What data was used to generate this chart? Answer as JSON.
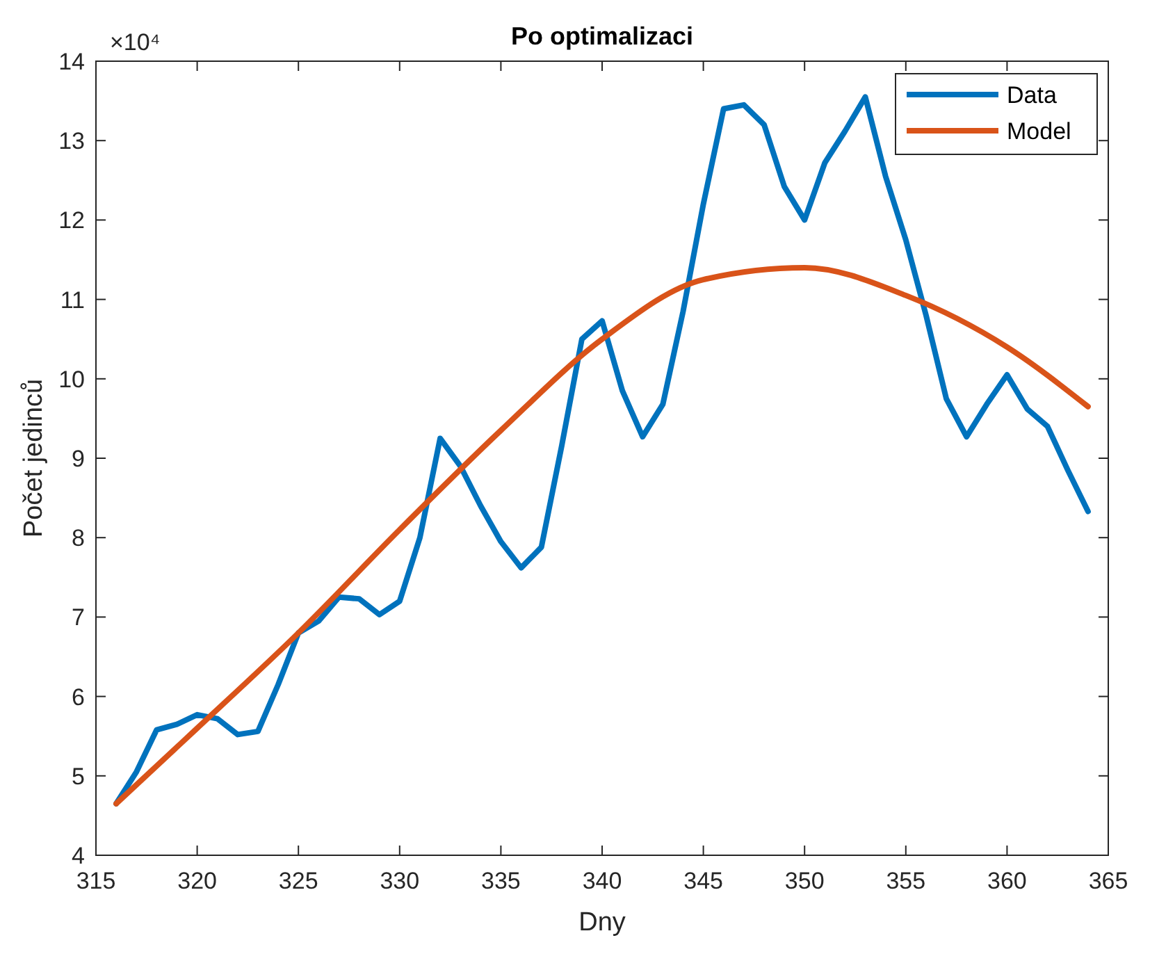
{
  "chart_data": {
    "type": "line",
    "title": "Po optimalizaci",
    "xlabel": "Dny",
    "ylabel": "Počet jedinců",
    "annotations": [
      "×10⁴"
    ],
    "xlim": [
      315,
      365
    ],
    "xticks": [
      315,
      320,
      325,
      330,
      335,
      340,
      345,
      350,
      355,
      360,
      365
    ],
    "ylim": [
      4,
      14
    ],
    "yticks": [
      4,
      5,
      6,
      7,
      8,
      9,
      10,
      11,
      12,
      13,
      14
    ],
    "grid": false,
    "legend": "top right",
    "series": [
      {
        "name": "Data",
        "color": "#0072bd",
        "x": [
          316,
          317,
          318,
          319,
          320,
          321,
          322,
          323,
          324,
          325,
          326,
          327,
          328,
          329,
          330,
          331,
          332,
          333,
          334,
          335,
          336,
          337,
          338,
          339,
          340,
          341,
          342,
          343,
          344,
          345,
          346,
          347,
          348,
          349,
          350,
          351,
          352,
          353,
          354,
          355,
          356,
          357,
          358,
          359,
          360,
          361,
          362,
          363,
          364
        ],
        "values": [
          4.65,
          5.05,
          5.58,
          5.65,
          5.77,
          5.72,
          5.52,
          5.56,
          6.15,
          6.8,
          6.95,
          7.25,
          7.23,
          7.03,
          7.2,
          8.0,
          9.25,
          8.9,
          8.4,
          7.95,
          7.62,
          7.88,
          9.15,
          10.5,
          10.73,
          9.85,
          9.27,
          9.68,
          10.85,
          12.2,
          13.4,
          13.45,
          13.2,
          12.42,
          12.0,
          12.72,
          13.12,
          13.55,
          12.55,
          11.75,
          10.8,
          9.75,
          9.27,
          9.68,
          10.05,
          9.62,
          9.4,
          8.85,
          8.33
        ]
      },
      {
        "name": "Model",
        "color": "#d95319",
        "x": [
          316,
          320,
          325,
          330,
          335,
          340,
          345,
          350,
          355,
          360,
          364
        ],
        "values": [
          4.65,
          5.6,
          6.8,
          8.1,
          9.35,
          10.5,
          11.25,
          11.4,
          11.05,
          10.4,
          9.65
        ]
      }
    ]
  }
}
